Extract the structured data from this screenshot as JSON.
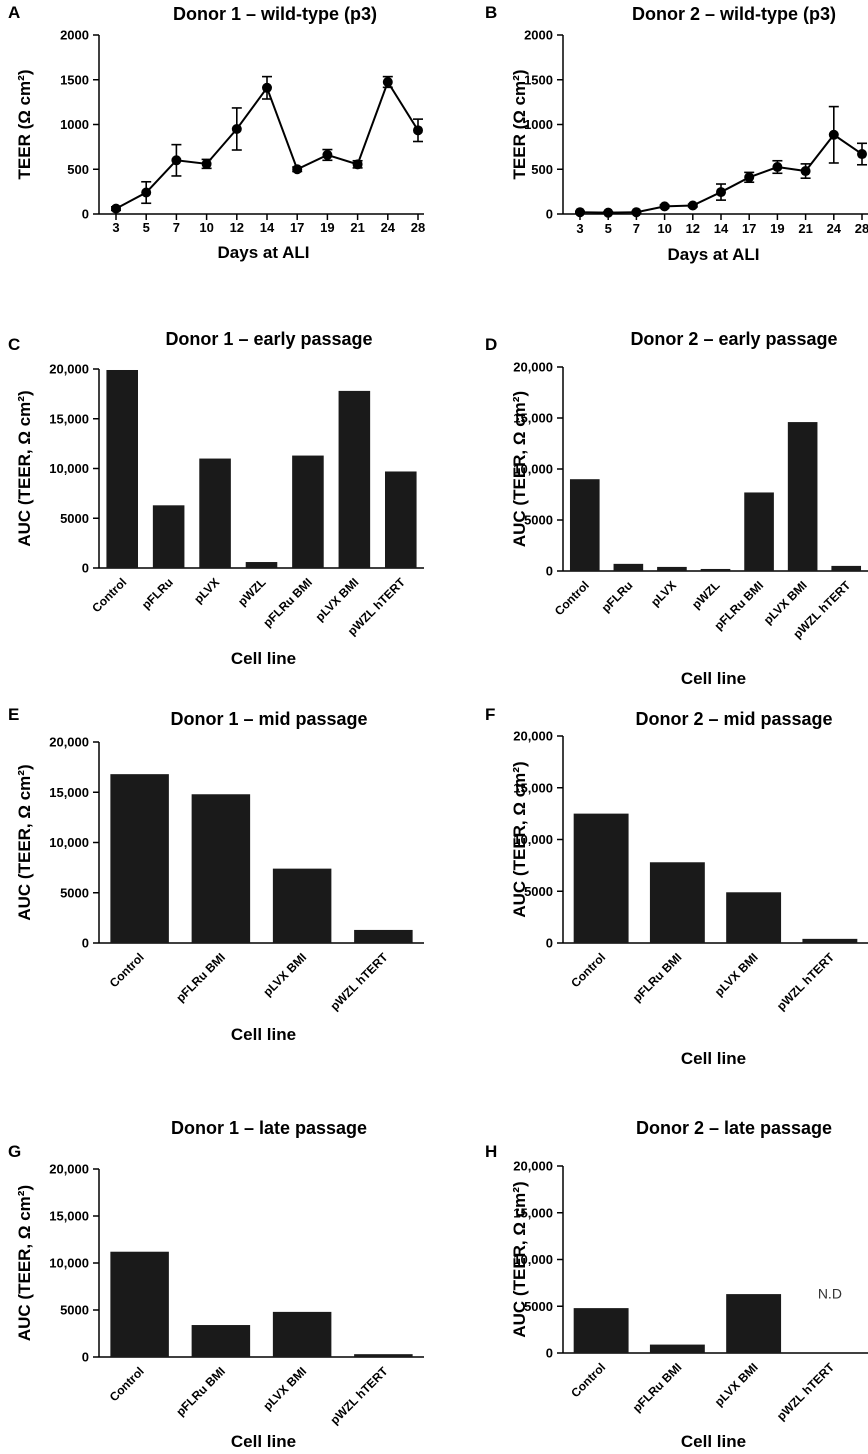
{
  "chart_data": [
    {
      "panel": "A",
      "type": "line",
      "title": "Donor 1 – wild-type (p3)",
      "xlabel": "Days at ALI",
      "ylabel": "TEER (Ω cm²)",
      "x": [
        "3",
        "5",
        "7",
        "10",
        "12",
        "14",
        "17",
        "19",
        "21",
        "24",
        "28"
      ],
      "y": [
        60,
        240,
        600,
        560,
        950,
        1410,
        500,
        660,
        555,
        1475,
        935
      ],
      "err": [
        20,
        120,
        175,
        50,
        235,
        125,
        25,
        60,
        40,
        60,
        125
      ],
      "ylim": [
        0,
        2000
      ],
      "yticks": [
        "0",
        "500",
        "1000",
        "1500",
        "2000"
      ]
    },
    {
      "panel": "B",
      "type": "line",
      "title": "Donor 2 – wild-type (p3)",
      "xlabel": "Days at ALI",
      "ylabel": "TEER (Ω cm²)",
      "x": [
        "3",
        "5",
        "7",
        "10",
        "12",
        "14",
        "17",
        "19",
        "21",
        "24",
        "28"
      ],
      "y": [
        20,
        15,
        20,
        85,
        95,
        245,
        410,
        525,
        480,
        885,
        670
      ],
      "err": [
        10,
        10,
        10,
        15,
        15,
        90,
        55,
        70,
        80,
        315,
        120
      ],
      "ylim": [
        0,
        2000
      ],
      "yticks": [
        "0",
        "500",
        "1000",
        "1500",
        "2000"
      ]
    },
    {
      "panel": "C",
      "type": "bar",
      "title": "Donor 1 – early passage",
      "xlabel": "Cell line",
      "ylabel": "AUC (TEER, Ω cm²)",
      "categories": [
        "Control",
        "pFLRu",
        "pLVX",
        "pWZL",
        "pFLRu BMI",
        "pLVX BMI",
        "pWZL hTERT"
      ],
      "values": [
        19900,
        6300,
        11000,
        600,
        11300,
        17800,
        9700
      ],
      "ylim": [
        0,
        20000
      ],
      "yticks": [
        "0",
        "5000",
        "10,000",
        "15,000",
        "20,000"
      ]
    },
    {
      "panel": "D",
      "type": "bar",
      "title": "Donor 2 – early passage",
      "xlabel": "Cell line",
      "ylabel": "AUC (TEER, Ω cm²)",
      "categories": [
        "Control",
        "pFLRu",
        "pLVX",
        "pWZL",
        "pFLRu BMI",
        "pLVX BMI",
        "pWZL hTERT"
      ],
      "values": [
        9000,
        700,
        400,
        200,
        7700,
        14600,
        500
      ],
      "ylim": [
        0,
        20000
      ],
      "yticks": [
        "0",
        "5000",
        "10,000",
        "15,000",
        "20,000"
      ]
    },
    {
      "panel": "E",
      "type": "bar",
      "title": "Donor 1 – mid passage",
      "xlabel": "Cell line",
      "ylabel": "AUC (TEER, Ω cm²)",
      "categories": [
        "Control",
        "pFLRu BMI",
        "pLVX BMI",
        "pWZL hTERT"
      ],
      "values": [
        16800,
        14800,
        7400,
        1300
      ],
      "ylim": [
        0,
        20000
      ],
      "yticks": [
        "0",
        "5000",
        "10,000",
        "15,000",
        "20,000"
      ]
    },
    {
      "panel": "F",
      "type": "bar",
      "title": "Donor 2 – mid passage",
      "xlabel": "Cell line",
      "ylabel": "AUC (TEER, Ω cm²)",
      "categories": [
        "Control",
        "pFLRu BMI",
        "pLVX BMI",
        "pWZL hTERT"
      ],
      "values": [
        12500,
        7800,
        4900,
        400
      ],
      "ylim": [
        0,
        20000
      ],
      "yticks": [
        "0",
        "5000",
        "10,000",
        "15,000",
        "20,000"
      ]
    },
    {
      "panel": "G",
      "type": "bar",
      "title": "Donor 1 – late passage",
      "xlabel": "Cell line",
      "ylabel": "AUC (TEER, Ω cm²)",
      "categories": [
        "Control",
        "pFLRu BMI",
        "pLVX BMI",
        "pWZL hTERT"
      ],
      "values": [
        11200,
        3400,
        4800,
        300
      ],
      "ylim": [
        0,
        20000
      ],
      "yticks": [
        "0",
        "5000",
        "10,000",
        "15,000",
        "20,000"
      ]
    },
    {
      "panel": "H",
      "type": "bar",
      "title": "Donor 2 – late passage",
      "xlabel": "Cell line",
      "ylabel": "AUC (TEER, Ω cm²)",
      "categories": [
        "Control",
        "pFLRu BMI",
        "pLVX BMI",
        "pWZL hTERT"
      ],
      "values": [
        4800,
        900,
        6300,
        null
      ],
      "annotation": "N.D",
      "ylim": [
        0,
        20000
      ],
      "yticks": [
        "0",
        "5000",
        "10,000",
        "15,000",
        "20,000"
      ]
    }
  ]
}
